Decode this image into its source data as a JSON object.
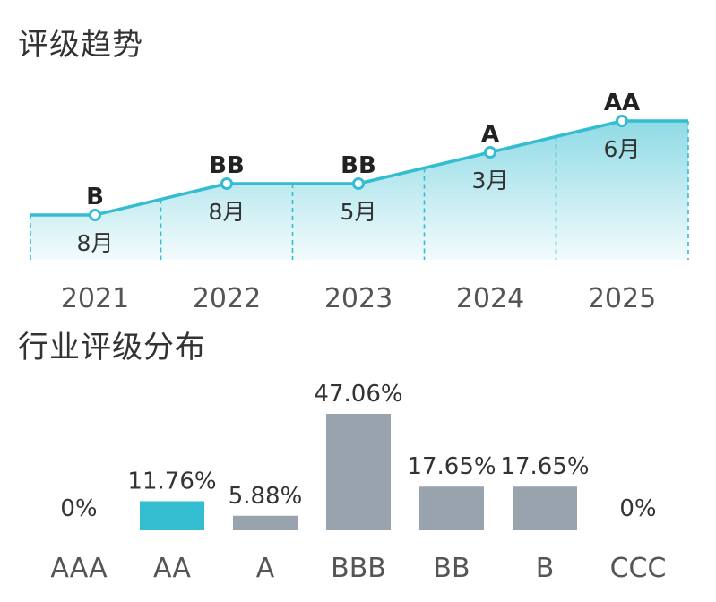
{
  "sections": {
    "trend_title": "评级趋势",
    "distribution_title": "行业评级分布"
  },
  "colors": {
    "line": "#34BCD0",
    "highlight_bar": "#34BCD0",
    "bar": "#98A3AE",
    "axis_text": "#555555"
  },
  "chart_data": [
    {
      "type": "line",
      "title": "评级趋势",
      "x": [
        "2021",
        "2022",
        "2023",
        "2024",
        "2025"
      ],
      "series": [
        {
          "ratings": [
            "B",
            "BB",
            "BB",
            "A",
            "AA"
          ],
          "months": [
            "8月",
            "8月",
            "5月",
            "3月",
            "6月"
          ],
          "levels": [
            1,
            2,
            2,
            3,
            4
          ]
        }
      ],
      "y_scale": "rating level (B=1, BB=2, A=3, AA=4)",
      "ylim": [
        0,
        4
      ]
    },
    {
      "type": "bar",
      "title": "行业评级分布",
      "categories": [
        "AAA",
        "AA",
        "A",
        "BBB",
        "BB",
        "B",
        "CCC"
      ],
      "values": [
        0,
        11.76,
        5.88,
        47.06,
        17.65,
        17.65,
        0
      ],
      "value_labels": [
        "0%",
        "11.76%",
        "5.88%",
        "47.06%",
        "17.65%",
        "17.65%",
        "0%"
      ],
      "highlight_category": "AA",
      "ylim": [
        0,
        47.06
      ]
    }
  ]
}
